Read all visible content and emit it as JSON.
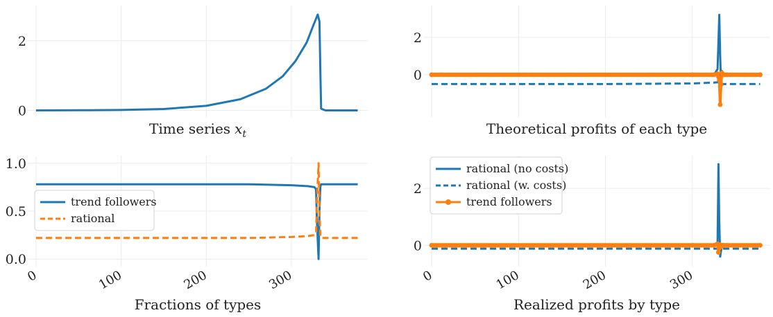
{
  "colors": {
    "blue": "#1f77b4",
    "orange": "#ff7f0e"
  },
  "chart_data": [
    {
      "type": "line",
      "title": "Time series",
      "title_math": "x",
      "title_sub": "t",
      "xlim": [
        0,
        380
      ],
      "ylim": [
        -0.05,
        2.85
      ],
      "xticks": [],
      "yticks": [
        0,
        2
      ],
      "ytick_labels": [
        "0",
        "2"
      ],
      "grid": true,
      "legend": null,
      "series": [
        {
          "color": "blue",
          "dash": "solid",
          "marker": false,
          "x": [
            0,
            50,
            100,
            150,
            200,
            240,
            270,
            290,
            305,
            318,
            326,
            331,
            333,
            334,
            335,
            340,
            378
          ],
          "y": [
            0,
            0.003,
            0.012,
            0.04,
            0.13,
            0.32,
            0.62,
            0.98,
            1.42,
            1.95,
            2.45,
            2.75,
            2.55,
            1.2,
            0.05,
            0.0,
            0.0
          ]
        }
      ]
    },
    {
      "type": "line",
      "title": "Theoretical profits of each type",
      "xlim": [
        0,
        380
      ],
      "ylim": [
        -2.0,
        3.4
      ],
      "xticks": [],
      "yticks": [
        0,
        2
      ],
      "ytick_labels": [
        "0",
        "2"
      ],
      "grid": true,
      "legend": null,
      "series": [
        {
          "color": "blue",
          "dash": "dashed",
          "marker": false,
          "x": [
            0,
            200,
            300,
            325,
            330,
            332,
            334,
            336,
            340,
            378
          ],
          "y": [
            -0.5,
            -0.5,
            -0.47,
            -0.42,
            -0.4,
            -0.6,
            -0.55,
            -0.5,
            -0.5,
            -0.5
          ]
        },
        {
          "color": "blue",
          "dash": "solid",
          "marker": false,
          "x": [
            0,
            325,
            329,
            331,
            332,
            333,
            334,
            336,
            340,
            378
          ],
          "y": [
            0,
            0,
            0.3,
            3.2,
            1.0,
            -0.5,
            0.2,
            0,
            0,
            0
          ]
        },
        {
          "color": "orange",
          "dash": "solid",
          "marker": true,
          "x": [
            0,
            300,
            325,
            329,
            331,
            332,
            333,
            334,
            336,
            340,
            378
          ],
          "y": [
            0,
            0,
            0,
            0.05,
            -0.3,
            -1.6,
            -0.5,
            0.1,
            0,
            0,
            0
          ]
        }
      ]
    },
    {
      "type": "line",
      "title": "Fractions of types",
      "xlim": [
        0,
        380
      ],
      "ylim": [
        -0.02,
        1.02
      ],
      "xticks": [
        0,
        100,
        200,
        300
      ],
      "xtick_labels": [
        "0",
        "100",
        "200",
        "300"
      ],
      "yticks": [
        0,
        0.5,
        1
      ],
      "ytick_labels": [
        "0.0",
        "0.5",
        "1.0"
      ],
      "grid": true,
      "legend": {
        "position": "center-left",
        "entries": [
          {
            "label": "trend followers",
            "color": "blue",
            "dash": "solid",
            "marker": false
          },
          {
            "label": "rational",
            "color": "orange",
            "dash": "dashed",
            "marker": false
          }
        ]
      },
      "series": [
        {
          "name": "trend followers",
          "color": "blue",
          "dash": "solid",
          "marker": false,
          "x": [
            0,
            250,
            300,
            320,
            327,
            329,
            330,
            331,
            332,
            333,
            334,
            335,
            336,
            378
          ],
          "y": [
            0.78,
            0.78,
            0.77,
            0.76,
            0.75,
            0.73,
            0.4,
            0.2,
            0.0,
            0.5,
            0.75,
            0.78,
            0.78,
            0.78
          ]
        },
        {
          "name": "rational",
          "color": "orange",
          "dash": "dashed",
          "marker": false,
          "x": [
            0,
            250,
            300,
            320,
            327,
            329,
            330,
            331,
            332,
            333,
            334,
            335,
            336,
            378
          ],
          "y": [
            0.22,
            0.22,
            0.23,
            0.24,
            0.25,
            0.27,
            0.6,
            0.8,
            1.0,
            0.5,
            0.25,
            0.22,
            0.22,
            0.22
          ]
        }
      ]
    },
    {
      "type": "line",
      "title": "Realized profits by type",
      "xlim": [
        0,
        380
      ],
      "ylim": [
        -0.55,
        2.95
      ],
      "xticks": [
        0,
        100,
        200,
        300
      ],
      "xtick_labels": [
        "0",
        "100",
        "200",
        "300"
      ],
      "yticks": [
        0,
        2
      ],
      "ytick_labels": [
        "0",
        "2"
      ],
      "grid": true,
      "legend": {
        "position": "top-left",
        "entries": [
          {
            "label": "rational (no costs)",
            "color": "blue",
            "dash": "solid",
            "marker": false
          },
          {
            "label": "rational (w. costs)",
            "color": "blue",
            "dash": "dashed",
            "marker": false
          },
          {
            "label": "trend followers",
            "color": "orange",
            "dash": "solid",
            "marker": true
          }
        ]
      },
      "series": [
        {
          "name": "rational (w. costs)",
          "color": "blue",
          "dash": "dashed",
          "marker": false,
          "x": [
            0,
            378
          ],
          "y": [
            -0.12,
            -0.12
          ]
        },
        {
          "name": "rational (no costs)",
          "color": "blue",
          "dash": "solid",
          "marker": false,
          "x": [
            0,
            325,
            329,
            330,
            331,
            332,
            333,
            334,
            336,
            340,
            378
          ],
          "y": [
            0,
            0,
            0.1,
            2.85,
            0.8,
            -0.4,
            -0.2,
            0,
            0,
            0,
            0
          ]
        },
        {
          "name": "trend followers",
          "color": "orange",
          "dash": "solid",
          "marker": true,
          "x": [
            0,
            300,
            325,
            329,
            330,
            331,
            332,
            333,
            334,
            336,
            340,
            378
          ],
          "y": [
            0,
            0,
            0,
            0.05,
            -0.25,
            -0.1,
            0.02,
            -0.05,
            0,
            0,
            0,
            0
          ]
        }
      ]
    }
  ]
}
